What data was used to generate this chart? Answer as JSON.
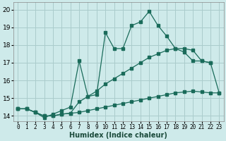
{
  "xlabel": "Humidex (Indice chaleur)",
  "bg_color": "#ceeaea",
  "grid_color": "#aacccc",
  "line_color": "#1a6b5a",
  "xlim": [
    -0.5,
    23.5
  ],
  "ylim": [
    13.7,
    20.4
  ],
  "xticks": [
    0,
    1,
    2,
    3,
    4,
    5,
    6,
    7,
    8,
    9,
    10,
    11,
    12,
    13,
    14,
    15,
    16,
    17,
    18,
    19,
    20,
    21,
    22,
    23
  ],
  "yticks": [
    14,
    15,
    16,
    17,
    18,
    19,
    20
  ],
  "line1_x": [
    0,
    1,
    2,
    3,
    4,
    5,
    6,
    7,
    8,
    9,
    10,
    11,
    12,
    13,
    14,
    15,
    16,
    17,
    18,
    19,
    20,
    21,
    22
  ],
  "line1_y": [
    14.4,
    14.4,
    14.2,
    13.9,
    14.1,
    14.3,
    14.5,
    17.1,
    15.1,
    15.2,
    18.7,
    17.8,
    17.8,
    19.1,
    19.3,
    19.9,
    19.1,
    18.5,
    17.8,
    17.6,
    17.1,
    17.1,
    17.0
  ],
  "line2_x": [
    0,
    1,
    2,
    3,
    4,
    5,
    6,
    7,
    8,
    9,
    10,
    11,
    12,
    13,
    14,
    15,
    16,
    17,
    18,
    19,
    20,
    21,
    22,
    23
  ],
  "line2_y": [
    14.4,
    14.4,
    14.2,
    14.0,
    14.0,
    14.1,
    14.15,
    14.2,
    14.3,
    14.4,
    14.5,
    14.6,
    14.7,
    14.8,
    14.9,
    15.0,
    15.1,
    15.2,
    15.3,
    15.35,
    15.4,
    15.35,
    15.3,
    15.3
  ],
  "line3_x": [
    0,
    1,
    2,
    3,
    4,
    5,
    6,
    7,
    8,
    9,
    10,
    11,
    12,
    13,
    14,
    15,
    16,
    17,
    18,
    19,
    20,
    21,
    22,
    23
  ],
  "line3_y": [
    14.4,
    14.4,
    14.2,
    14.0,
    14.0,
    14.1,
    14.15,
    14.8,
    15.1,
    15.4,
    15.8,
    16.1,
    16.4,
    16.7,
    17.0,
    17.3,
    17.5,
    17.7,
    17.8,
    17.8,
    17.7,
    17.1,
    17.0,
    15.3
  ]
}
